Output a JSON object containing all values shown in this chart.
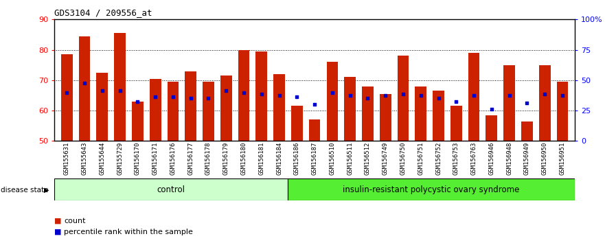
{
  "title": "GDS3104 / 209556_at",
  "samples": [
    "GSM155631",
    "GSM155643",
    "GSM155644",
    "GSM155729",
    "GSM156170",
    "GSM156171",
    "GSM156176",
    "GSM156177",
    "GSM156178",
    "GSM156179",
    "GSM156180",
    "GSM156181",
    "GSM156184",
    "GSM156186",
    "GSM156187",
    "GSM156510",
    "GSM156511",
    "GSM156512",
    "GSM156749",
    "GSM156750",
    "GSM156751",
    "GSM156752",
    "GSM156753",
    "GSM156763",
    "GSM156946",
    "GSM156948",
    "GSM156949",
    "GSM156950",
    "GSM156951"
  ],
  "bar_values": [
    78.5,
    84.5,
    72.5,
    85.5,
    63.0,
    70.5,
    69.5,
    73.0,
    69.5,
    71.5,
    80.0,
    79.5,
    72.0,
    61.5,
    57.0,
    76.0,
    71.0,
    68.0,
    65.5,
    78.0,
    68.0,
    66.5,
    61.5,
    79.0,
    58.5,
    75.0,
    56.5,
    75.0,
    69.5
  ],
  "dot_values": [
    66.0,
    69.0,
    66.5,
    66.5,
    63.0,
    64.5,
    64.5,
    64.0,
    64.0,
    66.5,
    66.0,
    65.5,
    65.0,
    64.5,
    62.0,
    66.0,
    65.0,
    64.0,
    65.0,
    65.5,
    65.0,
    64.0,
    63.0,
    65.0,
    60.5,
    65.0,
    62.5,
    65.5,
    65.0
  ],
  "control_count": 13,
  "bar_color": "#CC2200",
  "dot_color": "#0000CC",
  "bar_bottom": 50,
  "y_min": 50,
  "y_max": 90,
  "y_ticks_left": [
    50,
    60,
    70,
    80,
    90
  ],
  "right_tick_positions": [
    50,
    60,
    70,
    80,
    90
  ],
  "right_axis_labels": [
    "0",
    "25",
    "50",
    "75",
    "100%"
  ],
  "control_label": "control",
  "disease_label": "insulin-resistant polycystic ovary syndrome",
  "disease_state_label": "disease state",
  "legend_count": "count",
  "legend_percentile": "percentile rank within the sample",
  "control_color": "#CCFFCC",
  "disease_color": "#55EE33",
  "tick_bg_color": "#CCCCCC"
}
